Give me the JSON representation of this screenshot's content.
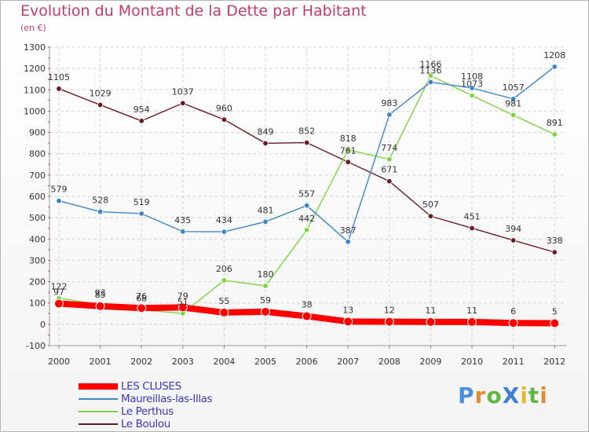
{
  "chart_data": {
    "type": "line",
    "title": "Evolution du Montant de la Dette par Habitant",
    "subtitle": "(en €)",
    "x": [
      "2000",
      "2001",
      "2002",
      "2003",
      "2004",
      "2005",
      "2006",
      "2007",
      "2008",
      "2009",
      "2010",
      "2011",
      "2012"
    ],
    "ylim": [
      -100,
      1300
    ],
    "yticks": [
      -100,
      0,
      100,
      200,
      300,
      400,
      500,
      600,
      700,
      800,
      900,
      1000,
      1100,
      1200,
      1300
    ],
    "grid": true,
    "legend_position": "bottom-left",
    "series": [
      {
        "name": "LES CLUSES",
        "color": "#ff0000",
        "values": [
          97,
          85,
          76,
          79,
          55,
          59,
          38,
          13,
          12,
          11,
          11,
          6,
          5
        ]
      },
      {
        "name": "Maureillas-las-Illas",
        "color": "#3d87c8",
        "values": [
          579,
          528,
          519,
          435,
          434,
          481,
          557,
          387,
          983,
          1136,
          1108,
          1057,
          1208
        ]
      },
      {
        "name": "Le Perthus",
        "color": "#7ed441",
        "values": [
          122,
          93,
          68,
          51,
          206,
          180,
          442,
          818,
          774,
          1166,
          1073,
          981,
          891
        ]
      },
      {
        "name": "Le Boulou",
        "color": "#6a1a22",
        "values": [
          1105,
          1029,
          954,
          1037,
          960,
          849,
          852,
          761,
          671,
          507,
          451,
          394,
          338
        ]
      }
    ]
  },
  "branding": {
    "logo_text": "ProXiti",
    "letters": [
      {
        "ch": "P",
        "color": "#4a8fe0"
      },
      {
        "ch": "r",
        "color": "#e38c2e"
      },
      {
        "ch": "o",
        "color": "#62b545"
      },
      {
        "ch": "X",
        "color": "#3f7fd6"
      },
      {
        "ch": "i",
        "color": "#e3b82e"
      },
      {
        "ch": "t",
        "color": "#62b545"
      },
      {
        "ch": "i",
        "color": "#e38c2e"
      }
    ]
  }
}
